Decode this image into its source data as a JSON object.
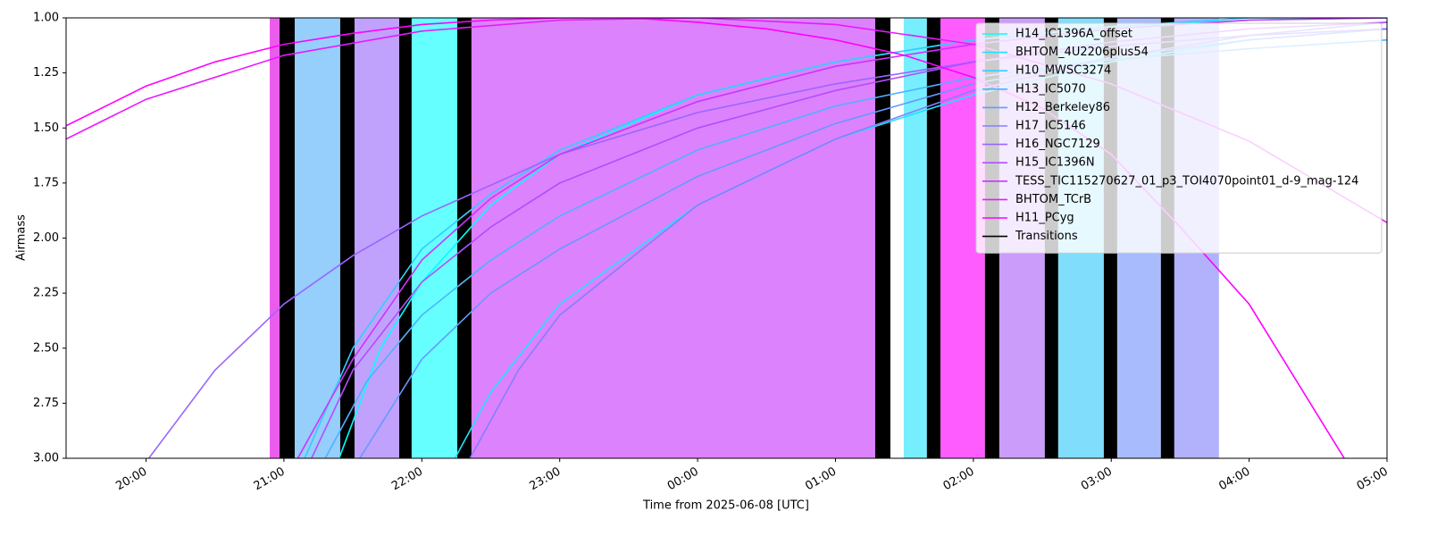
{
  "chart_data": {
    "type": "line",
    "xlabel": "Time from 2025-06-08 [UTC]",
    "ylabel": "Airmass",
    "xlim": [
      19.42,
      29.0
    ],
    "xticks": [
      {
        "value": 20,
        "label": "20:00"
      },
      {
        "value": 21,
        "label": "21:00"
      },
      {
        "value": 22,
        "label": "22:00"
      },
      {
        "value": 23,
        "label": "23:00"
      },
      {
        "value": 24,
        "label": "00:00"
      },
      {
        "value": 25,
        "label": "01:00"
      },
      {
        "value": 26,
        "label": "02:00"
      },
      {
        "value": 27,
        "label": "03:00"
      },
      {
        "value": 28,
        "label": "04:00"
      },
      {
        "value": 29,
        "label": "05:00"
      }
    ],
    "ylim": [
      3.0,
      1.0
    ],
    "yticks": [
      {
        "value": 1,
        "label": "1.00"
      },
      {
        "value": 1.25,
        "label": "1.25"
      },
      {
        "value": 1.5,
        "label": "1.50"
      },
      {
        "value": 1.75,
        "label": "1.75"
      },
      {
        "value": 2,
        "label": "2.00"
      },
      {
        "value": 2.25,
        "label": "2.25"
      },
      {
        "value": 2.5,
        "label": "2.50"
      },
      {
        "value": 2.75,
        "label": "2.75"
      },
      {
        "value": 3,
        "label": "3.00"
      }
    ],
    "legend": "upper right",
    "blocks": [
      {
        "start": 20.897,
        "end": 20.968,
        "color": "#ec5cec"
      },
      {
        "start": 21.078,
        "end": 21.408,
        "color": "#96cefc"
      },
      {
        "start": 21.512,
        "end": 21.836,
        "color": "#c0a2fd"
      },
      {
        "start": 21.926,
        "end": 22.257,
        "color": "#66ffff"
      },
      {
        "start": 22.36,
        "end": 25.288,
        "color": "#dd82fd"
      },
      {
        "start": 25.495,
        "end": 25.663,
        "color": "#77eefd"
      },
      {
        "start": 25.761,
        "end": 26.084,
        "color": "#ff5cff"
      },
      {
        "start": 26.188,
        "end": 26.518,
        "color": "#cc9cfb"
      },
      {
        "start": 26.615,
        "end": 26.946,
        "color": "#80defc"
      },
      {
        "start": 27.043,
        "end": 27.36,
        "color": "#a8bcfd"
      },
      {
        "start": 27.457,
        "end": 27.781,
        "color": "#b2b2fc"
      }
    ],
    "transitions_label": "Transitions",
    "transitions_color": "#000000",
    "transitions": [
      {
        "start": 20.968,
        "end": 21.078
      },
      {
        "start": 21.408,
        "end": 21.512
      },
      {
        "start": 21.836,
        "end": 21.926
      },
      {
        "start": 22.257,
        "end": 22.36
      },
      {
        "start": 25.288,
        "end": 25.398
      },
      {
        "start": 25.663,
        "end": 25.761
      },
      {
        "start": 26.084,
        "end": 26.188
      },
      {
        "start": 26.518,
        "end": 26.615
      },
      {
        "start": 26.946,
        "end": 27.043
      },
      {
        "start": 27.36,
        "end": 27.457
      }
    ],
    "series": [
      {
        "name": "H14_IC1396A_offset",
        "color": "#00ffff",
        "x": [
          21.4,
          21.7,
          22,
          22.5,
          23,
          24,
          25,
          26,
          27,
          28,
          29
        ],
        "values": [
          3.0,
          2.5,
          2.2,
          1.85,
          1.62,
          1.35,
          1.2,
          1.1,
          1.04,
          1.01,
          1.0
        ]
      },
      {
        "name": "BHTOM_4U2206plus54",
        "color": "#1ae5ff",
        "x": [
          22.24,
          22.5,
          23,
          24,
          25,
          26,
          27,
          28,
          29
        ],
        "values": [
          3.0,
          2.7,
          2.3,
          1.85,
          1.55,
          1.35,
          1.2,
          1.1,
          1.05
        ]
      },
      {
        "name": "H10_MWSC3274",
        "color": "#33ccff",
        "x": [
          21.15,
          21.5,
          22,
          22.5,
          23,
          24,
          25,
          26,
          27,
          28,
          29
        ],
        "values": [
          3.0,
          2.5,
          2.05,
          1.8,
          1.6,
          1.35,
          1.2,
          1.1,
          1.04,
          1.0,
          1.0
        ]
      },
      {
        "name": "H13_IC5070",
        "color": "#4db2ff",
        "x": [
          21.3,
          21.6,
          22,
          22.5,
          23,
          24,
          25,
          26,
          27,
          28,
          29
        ],
        "values": [
          3.0,
          2.65,
          2.35,
          2.1,
          1.9,
          1.6,
          1.4,
          1.27,
          1.19,
          1.14,
          1.1
        ]
      },
      {
        "name": "H12_Berkeley86",
        "color": "#6699ff",
        "x": [
          21.55,
          22,
          22.5,
          23,
          24,
          25,
          26,
          27,
          28,
          29
        ],
        "values": [
          3.0,
          2.55,
          2.25,
          2.05,
          1.72,
          1.48,
          1.3,
          1.18,
          1.1,
          1.05
        ]
      },
      {
        "name": "H17_IC5146",
        "color": "#8080ff",
        "x": [
          22.35,
          22.7,
          23,
          24,
          25,
          26,
          27,
          28,
          29
        ],
        "values": [
          3.0,
          2.6,
          2.35,
          1.85,
          1.55,
          1.33,
          1.18,
          1.08,
          1.02
        ]
      },
      {
        "name": "H16_NGC7129",
        "color": "#9966ff",
        "x": [
          20.02,
          20.5,
          21,
          21.5,
          22,
          23,
          24,
          25,
          26,
          27,
          28,
          29
        ],
        "values": [
          3.0,
          2.6,
          2.3,
          2.08,
          1.9,
          1.62,
          1.43,
          1.3,
          1.2,
          1.13,
          1.08,
          1.05
        ]
      },
      {
        "name": "H15_IC1396N",
        "color": "#b34dff",
        "x": [
          21.2,
          21.5,
          22,
          22.5,
          23,
          24,
          25,
          26,
          27,
          28,
          29
        ],
        "values": [
          3.0,
          2.6,
          2.2,
          1.95,
          1.75,
          1.5,
          1.33,
          1.2,
          1.11,
          1.05,
          1.02
        ]
      },
      {
        "name": "TESS_TIC115270627_01_p3_TOI4070point01_d-9_mag-124",
        "color": "#cc33ff",
        "x": [
          21.1,
          21.5,
          22,
          22.5,
          23,
          24,
          25,
          26,
          27,
          28,
          29
        ],
        "values": [
          3.0,
          2.55,
          2.1,
          1.82,
          1.62,
          1.38,
          1.22,
          1.12,
          1.05,
          1.01,
          1.0
        ]
      },
      {
        "name": "BHTOM_TCrB",
        "color": "#e61aff",
        "x": [
          19.42,
          20,
          21,
          22,
          23,
          24,
          25,
          26,
          27,
          28,
          29
        ],
        "values": [
          1.55,
          1.37,
          1.17,
          1.06,
          1.01,
          1.0,
          1.03,
          1.12,
          1.3,
          1.56,
          1.93
        ]
      },
      {
        "name": "H11_PCyg",
        "color": "#ff00ff",
        "x": [
          19.42,
          20,
          20.5,
          21,
          21.5,
          22,
          22.5,
          23,
          23.5,
          24,
          24.5,
          25,
          25.5,
          26,
          26.5,
          27,
          27.5,
          28,
          28.69
        ],
        "values": [
          1.49,
          1.31,
          1.2,
          1.12,
          1.07,
          1.03,
          1.01,
          1.0,
          1.0,
          1.02,
          1.05,
          1.1,
          1.17,
          1.27,
          1.41,
          1.62,
          1.95,
          2.3,
          3.0
        ]
      }
    ]
  }
}
